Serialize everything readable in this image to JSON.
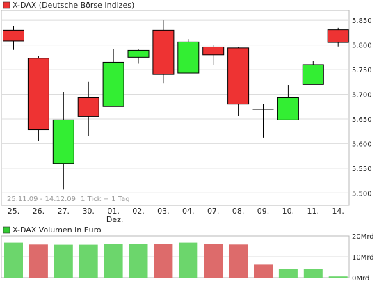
{
  "chart_data": [
    {
      "type": "candlestick",
      "title": "X-DAX (Deutsche Börse Indizes)",
      "categories": [
        "25.",
        "26.",
        "27.",
        "30.",
        "01.",
        "02.",
        "03.",
        "04.",
        "07.",
        "08.",
        "09.",
        "10.",
        "11.",
        "14."
      ],
      "month_label": {
        "category": "01.",
        "text": "Dez."
      },
      "date_range": "25.11.09 - 14.12.09",
      "interval_note": "1 Tick = 1 Tag",
      "ylim": [
        5475,
        5870
      ],
      "yticks": [
        5500,
        5550,
        5600,
        5650,
        5700,
        5750,
        5800,
        5850
      ],
      "ytick_labels": [
        "5.500",
        "5.550",
        "5.600",
        "5.650",
        "5.700",
        "5.750",
        "5.800",
        "5.850"
      ],
      "grid": true,
      "candles": [
        {
          "open": 5830,
          "close": 5808,
          "high": 5838,
          "low": 5790
        },
        {
          "open": 5773,
          "close": 5628,
          "high": 5777,
          "low": 5605
        },
        {
          "open": 5560,
          "close": 5648,
          "high": 5705,
          "low": 5507
        },
        {
          "open": 5693,
          "close": 5655,
          "high": 5725,
          "low": 5615
        },
        {
          "open": 5675,
          "close": 5765,
          "high": 5792,
          "low": 5675
        },
        {
          "open": 5775,
          "close": 5789,
          "high": 5791,
          "low": 5762
        },
        {
          "open": 5830,
          "close": 5740,
          "high": 5850,
          "low": 5723
        },
        {
          "open": 5743,
          "close": 5806,
          "high": 5812,
          "low": 5743
        },
        {
          "open": 5796,
          "close": 5780,
          "high": 5800,
          "low": 5760
        },
        {
          "open": 5794,
          "close": 5680,
          "high": 5796,
          "low": 5657
        },
        {
          "open": 5669,
          "close": 5670,
          "high": 5681,
          "low": 5612
        },
        {
          "open": 5648,
          "close": 5693,
          "high": 5719,
          "low": 5648
        },
        {
          "open": 5720,
          "close": 5760,
          "high": 5767,
          "low": 5720
        },
        {
          "open": 5831,
          "close": 5805,
          "high": 5835,
          "low": 5797
        }
      ],
      "colors": {
        "up": "#33ee33",
        "down": "#ee3333",
        "doji": "#000000",
        "grid": "#dcdcdc",
        "legend_swatch": "#ee3333"
      }
    },
    {
      "type": "bar",
      "title": "X-DAX Volumen in Euro",
      "categories": [
        "25.",
        "26.",
        "27.",
        "30.",
        "01.",
        "02.",
        "03.",
        "04.",
        "07.",
        "08.",
        "09.",
        "10.",
        "11.",
        "14."
      ],
      "values": [
        16.8,
        15.9,
        15.8,
        15.8,
        16.2,
        16.3,
        16.2,
        16.8,
        16.1,
        15.9,
        6.2,
        4.0,
        4.0,
        0.6
      ],
      "direction": [
        "up",
        "down",
        "up",
        "up",
        "up",
        "up",
        "down",
        "up",
        "down",
        "down",
        "down",
        "up",
        "up",
        "up"
      ],
      "ylim": [
        0,
        20
      ],
      "yticks": [
        0,
        10,
        20
      ],
      "ytick_labels": [
        "0Mrd",
        "10Mrd",
        "20Mrd"
      ],
      "grid": true,
      "colors": {
        "up": "#6cd66c",
        "down": "#dd6b6b",
        "grid": "#dcdcdc",
        "legend_swatch": "#33cc33"
      }
    }
  ]
}
